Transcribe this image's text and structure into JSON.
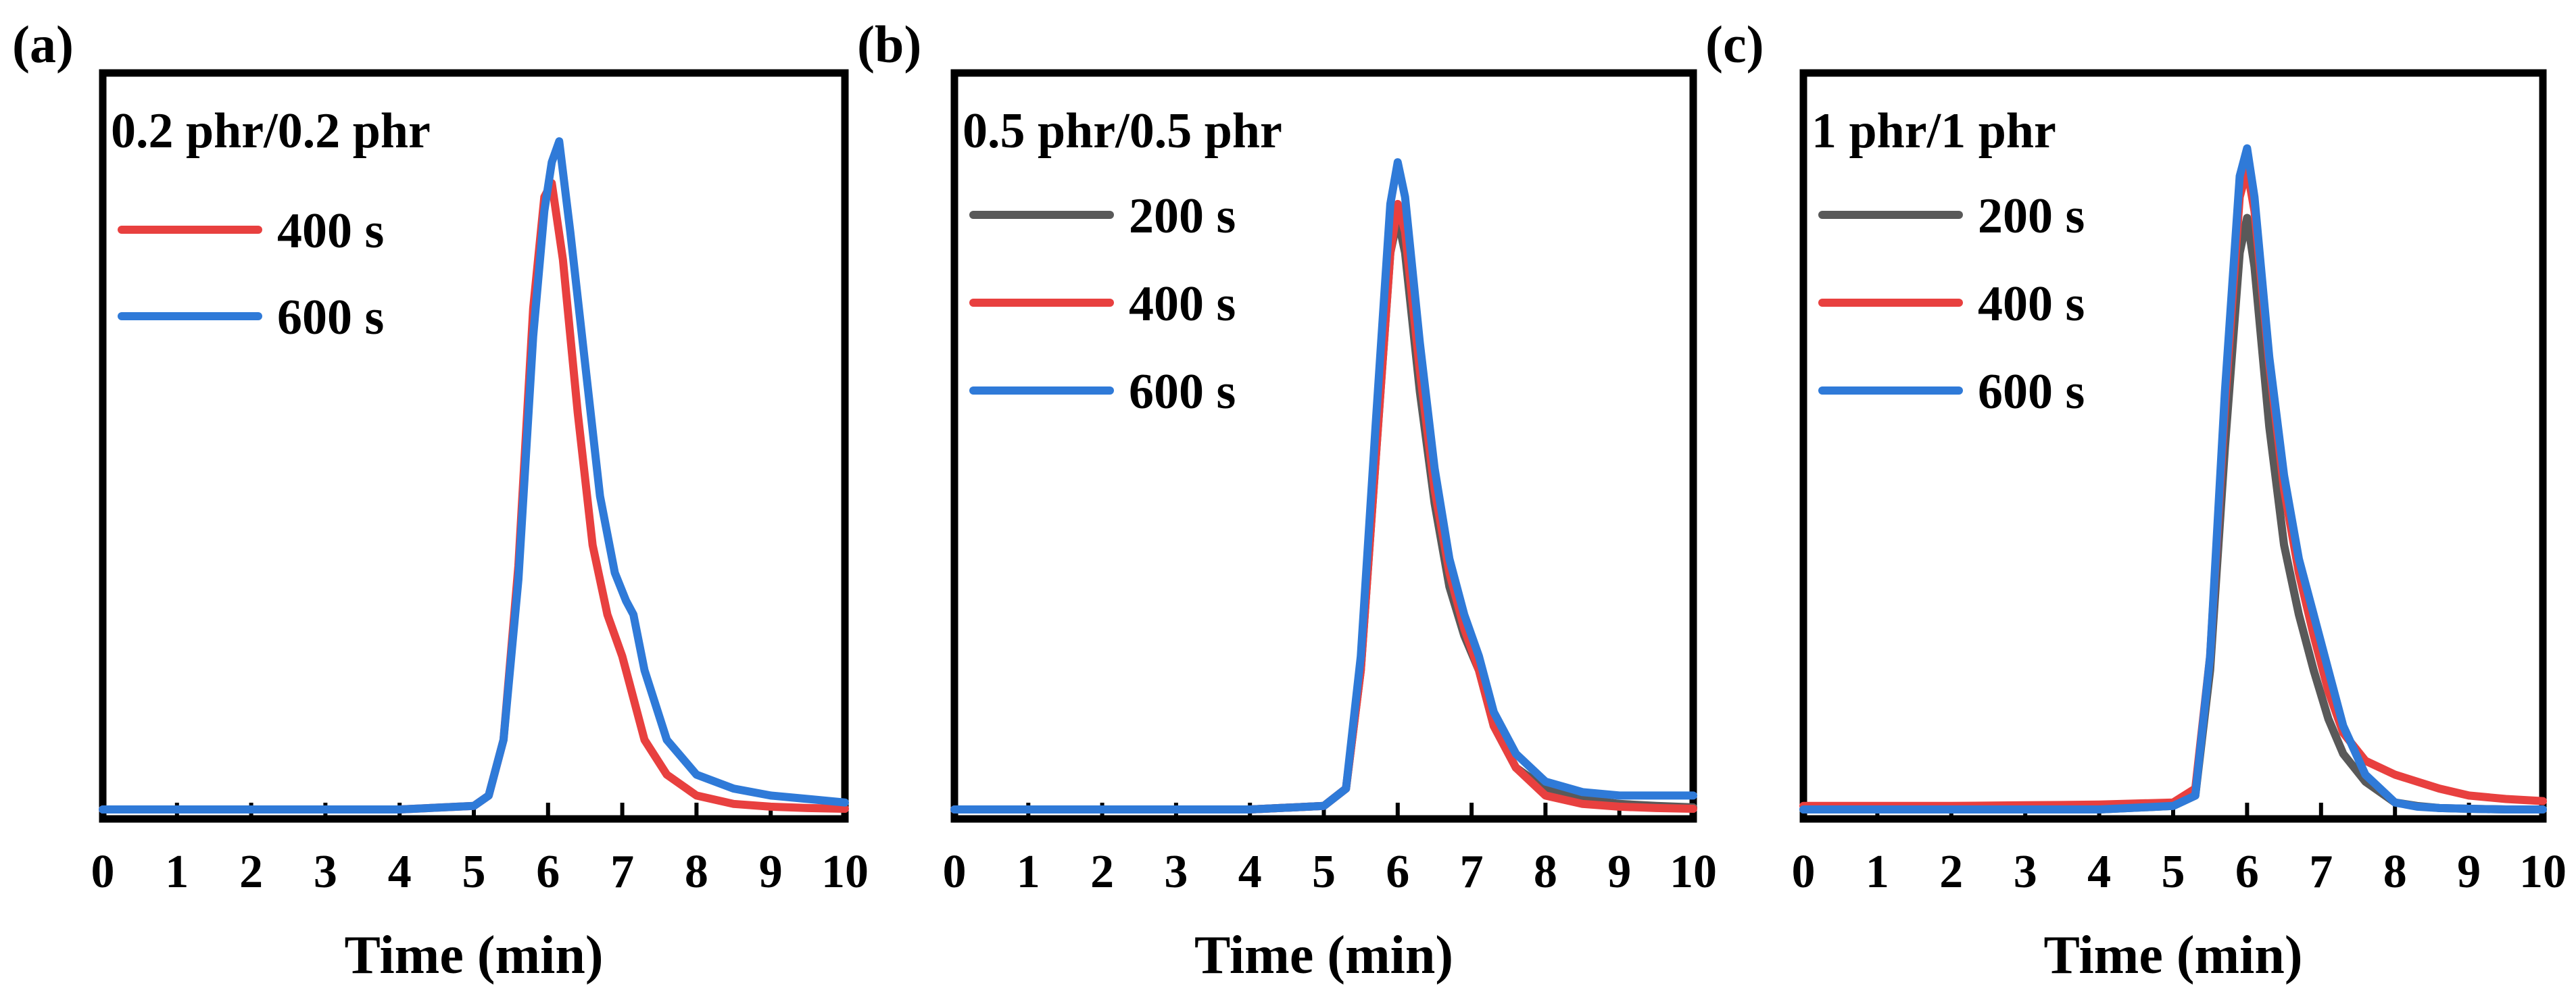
{
  "colors": {
    "200 s": "#595959",
    "400 s": "#e8403f",
    "600 s": "#2f7ad8",
    "frame": "#000000"
  },
  "chart_data": [
    {
      "type": "line",
      "panel_label": "(a)",
      "title": "0.2 phr/0.2 phr",
      "xlabel": "Time (min)",
      "ylabel": "",
      "xlim": [
        0,
        10
      ],
      "ylim": [
        0,
        1.0
      ],
      "xticks": [
        "0",
        "1",
        "2",
        "3",
        "4",
        "5",
        "6",
        "7",
        "8",
        "9",
        "10"
      ],
      "legend": [
        "400 s",
        "600 s"
      ],
      "series": [
        {
          "name": "400 s",
          "x": [
            0,
            1,
            2,
            3,
            4,
            5,
            5.2,
            5.4,
            5.6,
            5.8,
            5.95,
            6.05,
            6.2,
            6.4,
            6.6,
            6.8,
            7.0,
            7.1,
            7.3,
            7.6,
            8.0,
            8.5,
            9.0,
            9.5,
            10
          ],
          "y": [
            0,
            0,
            0,
            0,
            0,
            0.005,
            0.02,
            0.1,
            0.35,
            0.72,
            0.88,
            0.9,
            0.79,
            0.57,
            0.38,
            0.28,
            0.22,
            0.18,
            0.1,
            0.05,
            0.02,
            0.008,
            0.004,
            0.002,
            0.001
          ]
        },
        {
          "name": "600 s",
          "x": [
            0,
            1,
            2,
            3,
            4,
            5,
            5.2,
            5.4,
            5.6,
            5.8,
            5.95,
            6.05,
            6.15,
            6.3,
            6.5,
            6.7,
            6.9,
            7.05,
            7.15,
            7.3,
            7.6,
            8.0,
            8.5,
            9.0,
            9.5,
            10
          ],
          "y": [
            0,
            0,
            0,
            0,
            0,
            0.005,
            0.02,
            0.1,
            0.33,
            0.68,
            0.86,
            0.93,
            0.96,
            0.83,
            0.64,
            0.45,
            0.34,
            0.3,
            0.28,
            0.2,
            0.1,
            0.05,
            0.03,
            0.02,
            0.015,
            0.01
          ]
        }
      ]
    },
    {
      "type": "line",
      "panel_label": "(b)",
      "title": "0.5 phr/0.5 phr",
      "xlabel": "Time (min)",
      "ylabel": "",
      "xlim": [
        0,
        10
      ],
      "ylim": [
        0,
        1.0
      ],
      "xticks": [
        "0",
        "1",
        "2",
        "3",
        "4",
        "5",
        "6",
        "7",
        "8",
        "9",
        "10"
      ],
      "legend": [
        "200 s",
        "400 s",
        "600 s"
      ],
      "series": [
        {
          "name": "200 s",
          "x": [
            0,
            1,
            2,
            3,
            4,
            5,
            5.3,
            5.5,
            5.7,
            5.9,
            6.0,
            6.1,
            6.3,
            6.5,
            6.7,
            6.9,
            7.1,
            7.3,
            7.6,
            8.0,
            8.5,
            9.0,
            9.5,
            10
          ],
          "y": [
            0,
            0,
            0,
            0,
            0,
            0.005,
            0.03,
            0.2,
            0.5,
            0.8,
            0.85,
            0.8,
            0.6,
            0.44,
            0.32,
            0.25,
            0.2,
            0.12,
            0.06,
            0.03,
            0.015,
            0.008,
            0.005,
            0.003
          ]
        },
        {
          "name": "400 s",
          "x": [
            0,
            1,
            2,
            3,
            4,
            5,
            5.3,
            5.5,
            5.7,
            5.9,
            6.0,
            6.1,
            6.3,
            6.5,
            6.7,
            6.9,
            7.1,
            7.3,
            7.6,
            8.0,
            8.5,
            9.0,
            9.5,
            10
          ],
          "y": [
            0,
            0,
            0,
            0,
            0,
            0.005,
            0.03,
            0.2,
            0.5,
            0.8,
            0.87,
            0.83,
            0.63,
            0.46,
            0.34,
            0.26,
            0.2,
            0.12,
            0.06,
            0.02,
            0.008,
            0.004,
            0.002,
            0.001
          ]
        },
        {
          "name": "600 s",
          "x": [
            0,
            1,
            2,
            3,
            4,
            5,
            5.3,
            5.5,
            5.7,
            5.9,
            6.0,
            6.1,
            6.3,
            6.5,
            6.7,
            6.9,
            7.1,
            7.3,
            7.6,
            8.0,
            8.5,
            9.0,
            9.5,
            10
          ],
          "y": [
            0,
            0,
            0,
            0,
            0,
            0.005,
            0.03,
            0.22,
            0.55,
            0.87,
            0.93,
            0.88,
            0.67,
            0.49,
            0.36,
            0.28,
            0.22,
            0.14,
            0.08,
            0.04,
            0.025,
            0.02,
            0.02,
            0.02
          ]
        }
      ]
    },
    {
      "type": "line",
      "panel_label": "(c)",
      "title": "1 phr/1 phr",
      "xlabel": "Time (min)",
      "ylabel": "",
      "xlim": [
        0,
        10
      ],
      "ylim": [
        0,
        1.0
      ],
      "xticks": [
        "0",
        "1",
        "2",
        "3",
        "4",
        "5",
        "6",
        "7",
        "8",
        "9",
        "10"
      ],
      "legend": [
        "200 s",
        "400 s",
        "600 s"
      ],
      "series": [
        {
          "name": "200 s",
          "x": [
            0,
            1,
            2,
            3,
            4,
            5,
            5.3,
            5.5,
            5.7,
            5.9,
            6.0,
            6.1,
            6.3,
            6.5,
            6.7,
            6.9,
            7.1,
            7.3,
            7.6,
            8.0,
            8.3,
            8.6,
            9.0,
            9.5,
            10
          ],
          "y": [
            0,
            0,
            0,
            0,
            0,
            0.005,
            0.02,
            0.2,
            0.52,
            0.8,
            0.85,
            0.78,
            0.55,
            0.38,
            0.28,
            0.2,
            0.13,
            0.08,
            0.04,
            0.01,
            0.005,
            0.002,
            0.001,
            0,
            0
          ]
        },
        {
          "name": "400 s",
          "x": [
            0,
            1,
            2,
            3,
            4,
            5,
            5.3,
            5.5,
            5.7,
            5.9,
            6.0,
            6.1,
            6.3,
            6.5,
            6.7,
            6.9,
            7.1,
            7.3,
            7.6,
            8.0,
            8.3,
            8.6,
            9.0,
            9.5,
            10
          ],
          "y": [
            0.005,
            0.005,
            0.005,
            0.006,
            0.007,
            0.01,
            0.03,
            0.22,
            0.58,
            0.88,
            0.92,
            0.86,
            0.64,
            0.46,
            0.34,
            0.25,
            0.17,
            0.11,
            0.07,
            0.05,
            0.04,
            0.03,
            0.02,
            0.015,
            0.012
          ]
        },
        {
          "name": "600 s",
          "x": [
            0,
            1,
            2,
            3,
            4,
            5,
            5.3,
            5.5,
            5.7,
            5.9,
            6.0,
            6.1,
            6.3,
            6.5,
            6.7,
            6.9,
            7.1,
            7.3,
            7.6,
            8.0,
            8.3,
            8.6,
            9.0,
            9.5,
            10
          ],
          "y": [
            0,
            0,
            0,
            0,
            0,
            0.005,
            0.02,
            0.22,
            0.6,
            0.91,
            0.95,
            0.88,
            0.65,
            0.48,
            0.36,
            0.28,
            0.2,
            0.12,
            0.05,
            0.01,
            0.004,
            0.002,
            0.001,
            0,
            0
          ]
        }
      ]
    }
  ]
}
